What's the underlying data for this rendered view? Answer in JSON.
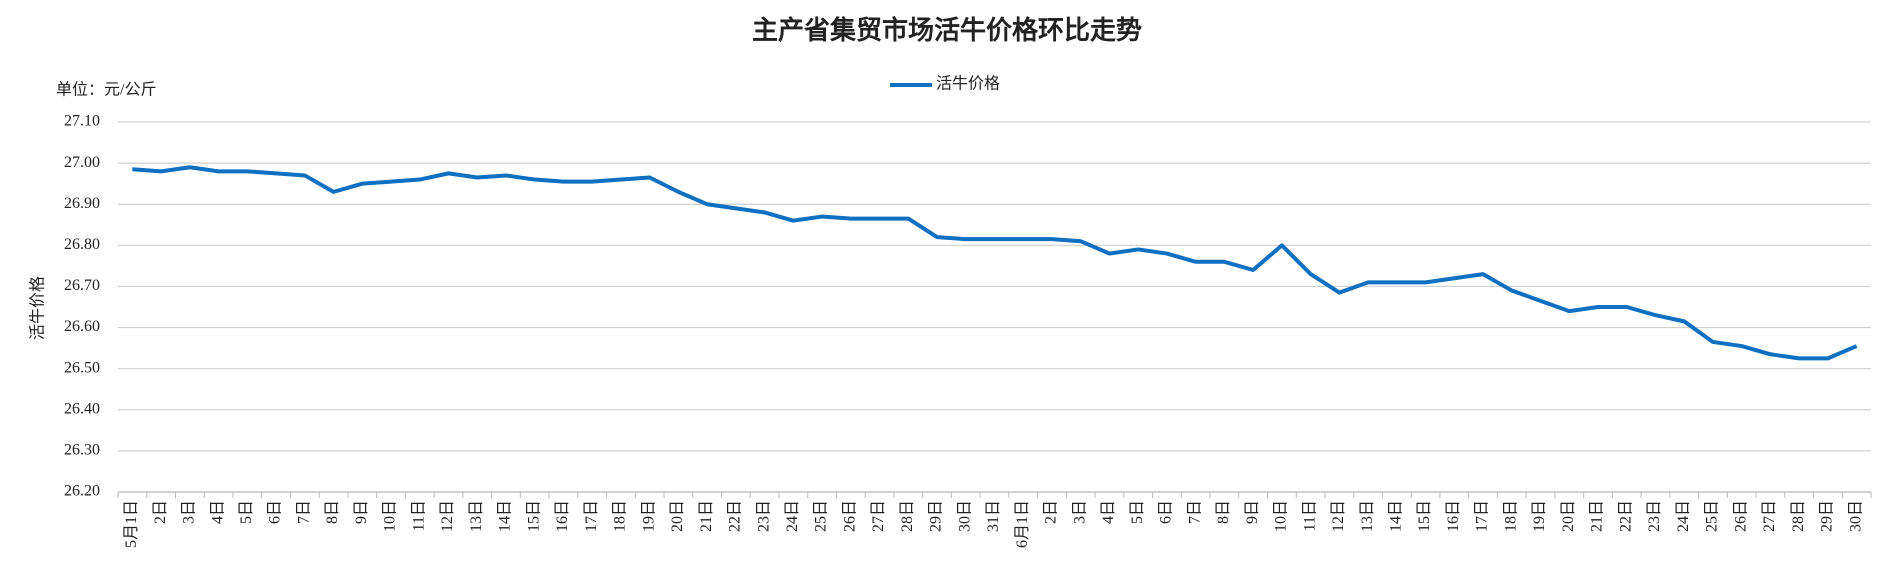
{
  "chart_data": {
    "type": "line",
    "title": "主产省集贸市场活牛价格环比走势",
    "unit_label": "单位：元/公斤",
    "y_label": "活牛价格",
    "categories": [
      "5月1日",
      "2日",
      "3日",
      "4日",
      "5日",
      "6日",
      "7日",
      "8日",
      "9日",
      "10日",
      "11日",
      "12日",
      "13日",
      "14日",
      "15日",
      "16日",
      "17日",
      "18日",
      "19日",
      "20日",
      "21日",
      "22日",
      "23日",
      "24日",
      "25日",
      "26日",
      "27日",
      "28日",
      "29日",
      "30日",
      "31日",
      "6月1日",
      "2日",
      "3日",
      "4日",
      "5日",
      "6日",
      "7日",
      "8日",
      "9日",
      "10日",
      "11日",
      "12日",
      "13日",
      "14日",
      "15日",
      "16日",
      "17日",
      "18日",
      "19日",
      "20日",
      "21日",
      "22日",
      "23日",
      "24日",
      "25日",
      "26日",
      "27日",
      "28日",
      "29日",
      "30日"
    ],
    "series": [
      {
        "name": "活牛价格",
        "color": "#0f6fc0",
        "values": [
          26.985,
          26.98,
          26.99,
          26.98,
          26.98,
          26.975,
          26.97,
          26.93,
          26.95,
          26.955,
          26.96,
          26.975,
          26.965,
          26.97,
          26.96,
          26.955,
          26.955,
          26.96,
          26.965,
          26.93,
          26.9,
          26.89,
          26.88,
          26.86,
          26.87,
          26.865,
          26.865,
          26.865,
          26.82,
          26.815,
          26.815,
          26.815,
          26.815,
          26.81,
          26.78,
          26.79,
          26.78,
          26.76,
          26.76,
          26.74,
          26.8,
          26.73,
          26.685,
          26.71,
          26.71,
          26.71,
          26.72,
          26.73,
          26.69,
          26.665,
          26.64,
          26.65,
          26.65,
          26.63,
          26.615,
          26.565,
          26.555,
          26.535,
          26.525,
          26.525,
          26.555
        ]
      }
    ],
    "ylim": [
      26.2,
      27.1
    ],
    "yticks": [
      {
        "value": 26.2,
        "label": "26.20"
      },
      {
        "value": 26.3,
        "label": "26.30"
      },
      {
        "value": 26.4,
        "label": "26.40"
      },
      {
        "value": 26.5,
        "label": "26.50"
      },
      {
        "value": 26.6,
        "label": "26.60"
      },
      {
        "value": 26.7,
        "label": "26.70"
      },
      {
        "value": 26.8,
        "label": "26.80"
      },
      {
        "value": 26.9,
        "label": "26.90"
      },
      {
        "value": 27.0,
        "label": "27.00"
      },
      {
        "value": 27.1,
        "label": "27.10"
      }
    ],
    "grid": true,
    "legend": "top"
  }
}
